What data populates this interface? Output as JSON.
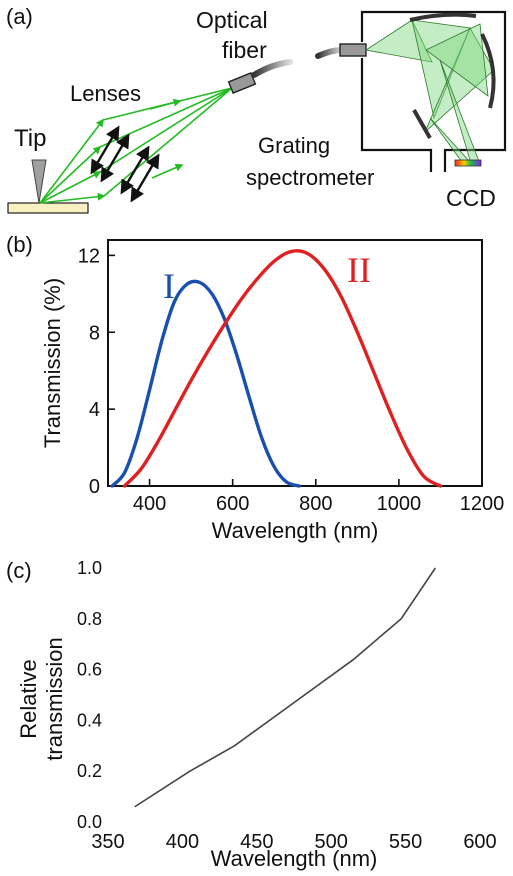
{
  "panel_a": {
    "label": "(a)",
    "tip_label": "Tip",
    "lenses_label": "Lenses",
    "fiber_label_line1": "Optical",
    "fiber_label_line2": "fiber",
    "spectrometer_label_line1": "Grating",
    "spectrometer_label_line2": "spectrometer",
    "ccd_label": "CCD",
    "colors": {
      "beam": "#22bb22",
      "tip": "#a0a0a0",
      "sample": "#f8f0c0",
      "spectrometer_fill": "#7fd87f"
    }
  },
  "panel_b": {
    "label": "(b)"
  },
  "panel_c": {
    "label": "(c)"
  },
  "chart_data": [
    {
      "type": "line",
      "xlabel": "Wavelength (nm)",
      "ylabel": "Transmission (%)",
      "xlim": [
        300,
        1200
      ],
      "ylim": [
        0,
        12.8
      ],
      "xticks": [
        400,
        600,
        800,
        1000,
        1200
      ],
      "yticks": [
        0,
        4,
        8,
        12
      ],
      "grid": false,
      "series": [
        {
          "name": "I",
          "color": "#1a4fb0",
          "x": [
            310,
            340,
            370,
            400,
            430,
            460,
            490,
            520,
            550,
            580,
            610,
            640,
            670,
            700,
            730,
            760
          ],
          "y": [
            0,
            0.7,
            2.5,
            5.0,
            7.6,
            9.6,
            10.5,
            10.6,
            10.0,
            8.7,
            6.8,
            4.6,
            2.5,
            1.0,
            0.2,
            0
          ]
        },
        {
          "name": "II",
          "color": "#e02020",
          "x": [
            340,
            380,
            420,
            460,
            500,
            540,
            580,
            620,
            660,
            700,
            740,
            780,
            820,
            860,
            900,
            940,
            980,
            1020,
            1060,
            1100
          ],
          "y": [
            0,
            0.9,
            2.3,
            3.9,
            5.5,
            7.0,
            8.4,
            9.7,
            10.8,
            11.7,
            12.2,
            12.1,
            11.3,
            9.9,
            8.0,
            5.9,
            3.8,
            1.9,
            0.5,
            0
          ]
        }
      ]
    },
    {
      "type": "line",
      "xlabel": "Wavelength (nm)",
      "ylabel_line1": "Relative",
      "ylabel_line2": "transmission",
      "xlim": [
        350,
        600
      ],
      "ylim": [
        0,
        1.0
      ],
      "xticks": [
        350,
        400,
        450,
        500,
        550,
        600
      ],
      "yticks": [
        "0.0",
        "0.2",
        "0.4",
        "0.6",
        "0.8",
        "1.0"
      ],
      "grid": false,
      "series": [
        {
          "color": "#444444",
          "x": [
            368,
            405,
            435,
            475,
            515,
            547,
            570
          ],
          "y": [
            0.06,
            0.2,
            0.3,
            0.47,
            0.64,
            0.8,
            1.0
          ]
        }
      ]
    }
  ]
}
